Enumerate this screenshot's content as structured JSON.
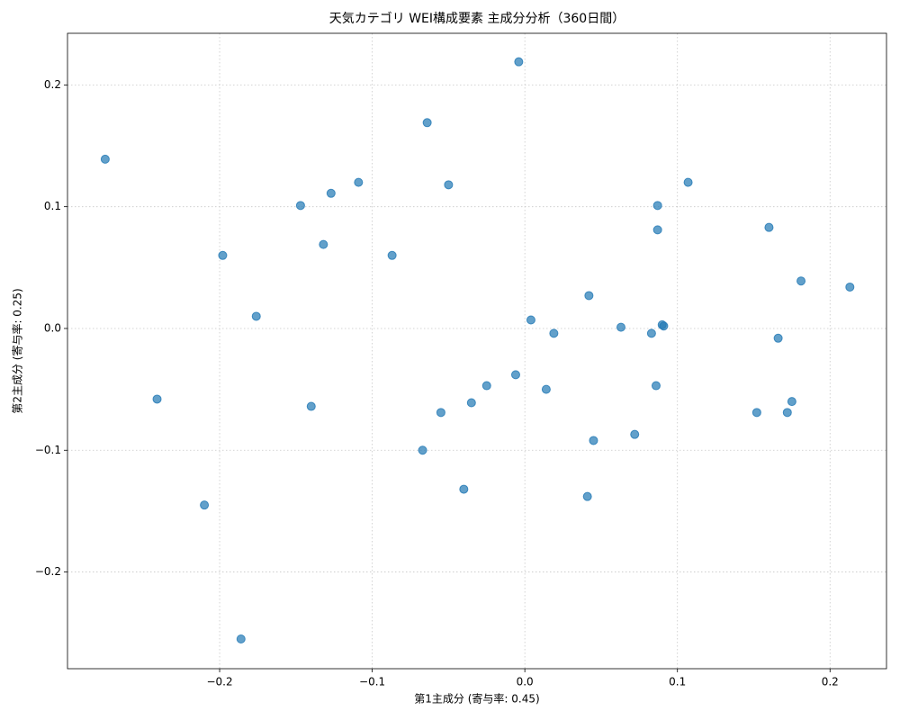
{
  "chart_data": {
    "type": "scatter",
    "title": "天気カテゴリ WEI構成要素 主成分分析（360日間）",
    "x_label": "第1主成分 (寄与率: 0.45)",
    "y_label": "第2主成分 (寄与率: 0.25)",
    "color": "#1f77b4",
    "grid": true,
    "xlim": [
      -0.2997,
      0.237
    ],
    "ylim": [
      -0.2794,
      0.2424
    ],
    "xticks": [
      {
        "value": -0.2,
        "label": "−0.2"
      },
      {
        "value": -0.1,
        "label": "−0.1"
      },
      {
        "value": 0,
        "label": "0.0"
      },
      0.1,
      0.2
    ],
    "yticks": [
      {
        "value": -0.2,
        "label": "−0.2"
      },
      {
        "value": -0.1,
        "label": "−0.1"
      },
      {
        "value": 0,
        "label": "0.0"
      },
      0.1,
      0.2
    ],
    "x": [
      -0.275,
      -0.241,
      -0.21,
      -0.198,
      -0.186,
      -0.176,
      -0.147,
      -0.14,
      -0.132,
      -0.127,
      -0.109,
      -0.087,
      -0.067,
      -0.064,
      -0.055,
      -0.05,
      -0.04,
      -0.035,
      -0.025,
      -0.006,
      -0.004,
      0.004,
      0.014,
      0.019,
      0.041,
      0.042,
      0.045,
      0.063,
      0.072,
      0.083,
      0.086,
      0.087,
      0.087,
      0.09,
      0.091,
      0.107,
      0.152,
      0.16,
      0.166,
      0.172,
      0.175,
      0.181,
      0.213
    ],
    "y": [
      0.139,
      -0.058,
      -0.145,
      0.06,
      -0.255,
      0.01,
      0.101,
      -0.064,
      0.069,
      0.111,
      0.12,
      0.06,
      -0.1,
      0.169,
      -0.069,
      0.118,
      -0.132,
      -0.061,
      -0.047,
      -0.038,
      0.219,
      0.007,
      -0.05,
      -0.004,
      -0.138,
      0.027,
      -0.092,
      0.001,
      -0.087,
      -0.004,
      -0.047,
      0.101,
      0.081,
      0.003,
      0.002,
      0.12,
      -0.069,
      0.083,
      -0.008,
      -0.069,
      -0.06,
      0.039,
      0.034
    ]
  }
}
